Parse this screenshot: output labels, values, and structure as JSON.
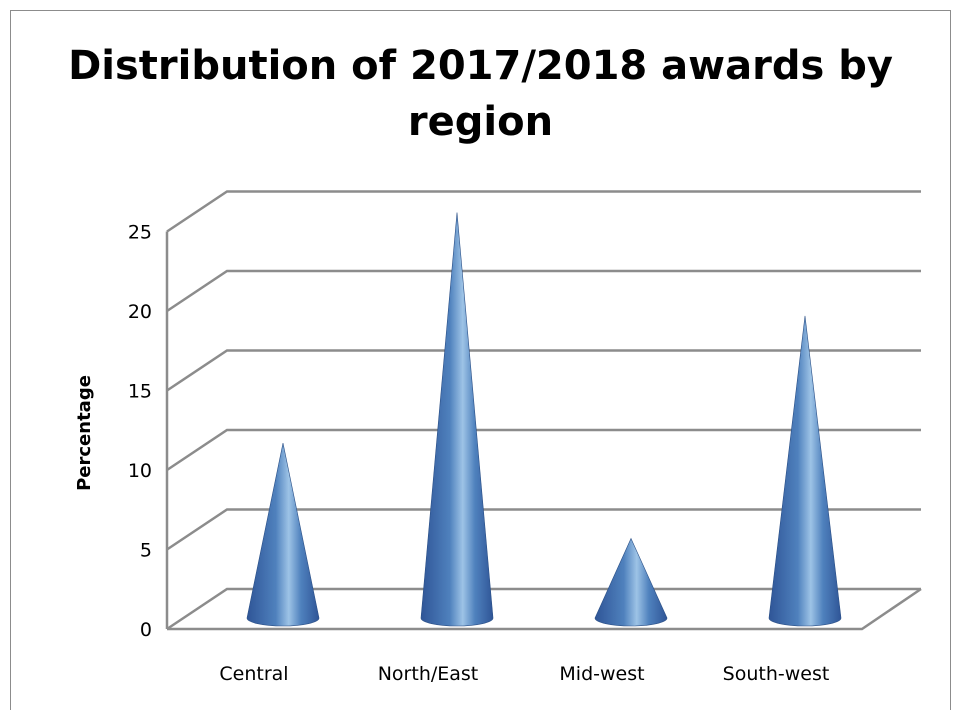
{
  "chart_data": {
    "type": "bar",
    "bar_shape": "3d-cone",
    "title": "Distribution of 2017/2018 awards by region",
    "xlabel": "",
    "ylabel": "Percentage",
    "categories": [
      "Central",
      "North/East",
      "Mid-west",
      "South-west"
    ],
    "values": [
      11,
      25.5,
      5,
      19
    ],
    "ylim": [
      0,
      25
    ],
    "yticks": [
      0,
      5,
      10,
      15,
      20,
      25
    ],
    "grid": true,
    "legend": "none",
    "colors": {
      "cone_dark": "#2f5597",
      "cone_mid": "#4f81bd",
      "cone_light": "#9dc3e6",
      "grid": "#8c8c8c"
    }
  }
}
